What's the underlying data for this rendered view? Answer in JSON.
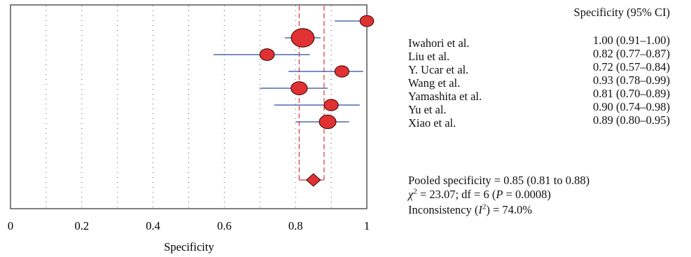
{
  "chart_data": {
    "type": "scatter",
    "subtype": "forest-plot",
    "xlabel": "Specificity",
    "xlim": [
      0,
      1
    ],
    "xticks": [
      "0",
      "0.2",
      "0.4",
      "0.6",
      "0.8",
      "1"
    ],
    "grid": "vertical dotted every 0.1",
    "ci_header": "Specificity (95% CI)",
    "studies": [
      {
        "name": "Iwahori et al.",
        "estimate": 1.0,
        "lower": 0.91,
        "upper": 1.0,
        "ci_text": "1.00 (0.91–1.00)",
        "weight": 0.55
      },
      {
        "name": "Liu et al.",
        "estimate": 0.82,
        "lower": 0.77,
        "upper": 0.87,
        "ci_text": "0.82 (0.77–0.87)",
        "weight": 1.6
      },
      {
        "name": "Y. Ucar et al.",
        "estimate": 0.72,
        "lower": 0.57,
        "upper": 0.84,
        "ci_text": "0.72 (0.57–0.84)",
        "weight": 0.65
      },
      {
        "name": "Wang et al.",
        "estimate": 0.93,
        "lower": 0.78,
        "upper": 0.99,
        "ci_text": "0.93 (0.78–0.99)",
        "weight": 0.6
      },
      {
        "name": "Yamashita et al.",
        "estimate": 0.81,
        "lower": 0.7,
        "upper": 0.89,
        "ci_text": "0.81 (0.70–0.89)",
        "weight": 0.85
      },
      {
        "name": "Yu et al.",
        "estimate": 0.9,
        "lower": 0.74,
        "upper": 0.98,
        "ci_text": "0.90 (0.74–0.98)",
        "weight": 0.6
      },
      {
        "name": "Xiao et al.",
        "estimate": 0.89,
        "lower": 0.8,
        "upper": 0.95,
        "ci_text": "0.89 (0.80–0.95)",
        "weight": 0.9
      }
    ],
    "pooled": {
      "estimate": 0.85,
      "lower": 0.81,
      "upper": 0.88
    },
    "colors": {
      "marker": "#e03232",
      "ci_line": "#2b4aa0",
      "pooled_line": "#e03232"
    }
  },
  "stats": {
    "pooled_text": "Pooled specificity = 0.85 (0.81 to 0.88)",
    "chi_symbol": "χ",
    "chi_sup": "2",
    "chi_mid": " = 23.07; df = 6 (",
    "p_symbol": "P",
    "chi_tail": " = 0.0008)",
    "incons_pre": "Inconsistency (",
    "i_symbol": "I",
    "i_sup": "2",
    "incons_post": ") = 74.0%"
  }
}
